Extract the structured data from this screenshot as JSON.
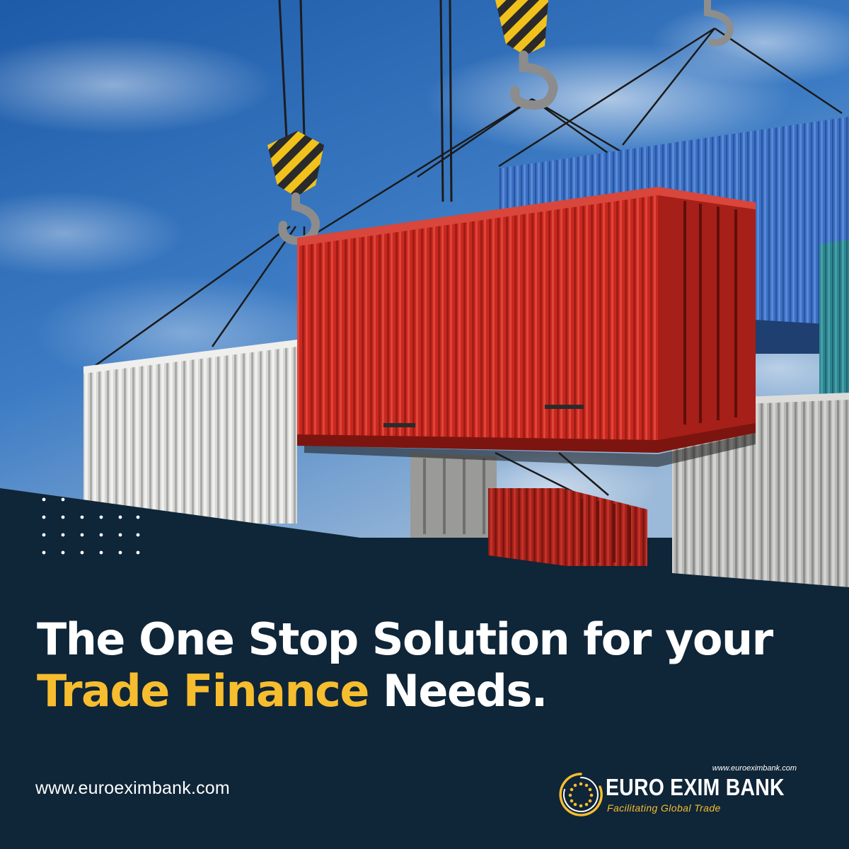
{
  "headline": {
    "line1": "The One Stop Solution for your",
    "accent": "Trade Finance",
    "rest": "Needs."
  },
  "website": "www.euroeximbank.com",
  "logo": {
    "url": "www.euroeximbank.com",
    "name": "EURO EXIM BANK",
    "tagline": "Facilitating Global Trade",
    "emblem_icon": "circle-of-stars-icon"
  },
  "colors": {
    "navy": "#0f2538",
    "accent_yellow": "#f6bd2e",
    "container_red": "#c82a22",
    "container_blue": "#3c73c8",
    "container_white": "#d8d8d6",
    "container_teal": "#2f8590"
  }
}
